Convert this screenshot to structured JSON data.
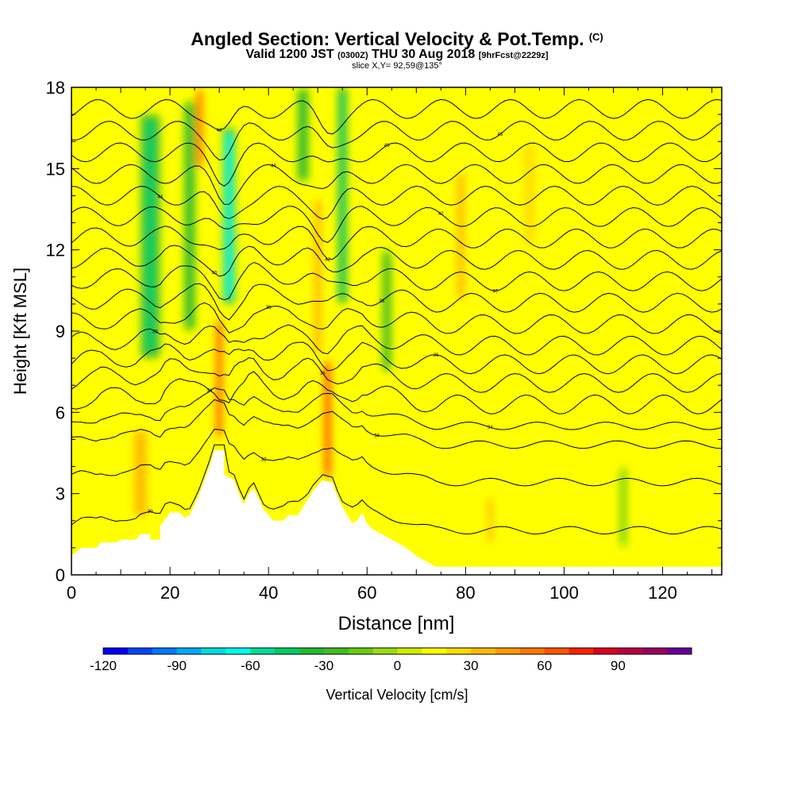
{
  "header": {
    "title": "Angled Section: Vertical Velocity & Pot.Temp.",
    "title_units": "(C)",
    "valid_prefix": "Valid 1200 JST",
    "valid_utc": "(0300Z)",
    "valid_date": "THU 30 Aug 2018",
    "forecast": "[9hrFcst@2229z]",
    "slice": "slice X,Y= 92,59@135°"
  },
  "chart_data": {
    "type": "heatmap",
    "xlabel": "Distance [nm]",
    "ylabel": "Height [Kft MSL]",
    "xlim": [
      0,
      132
    ],
    "ylim": [
      0,
      18
    ],
    "x_ticks": [
      0,
      20,
      40,
      60,
      80,
      100,
      120
    ],
    "y_ticks": [
      0,
      3,
      6,
      9,
      12,
      15,
      18
    ],
    "colorbar": {
      "label": "Vertical Velocity [cm/s]",
      "min": -120,
      "max": 110,
      "step": 10,
      "tick_values": [
        -120,
        -90,
        -60,
        -30,
        0,
        30,
        60,
        90
      ],
      "colors": [
        "#0000ff",
        "#0044ff",
        "#0077ff",
        "#00aaff",
        "#00dddd",
        "#00ffee",
        "#00dd99",
        "#00cc66",
        "#22bb33",
        "#44bb22",
        "#66cc11",
        "#99dd11",
        "#ccee00",
        "#ffff00",
        "#ffdd00",
        "#ffbb00",
        "#ff9900",
        "#ff7700",
        "#ff5500",
        "#ff2200",
        "#dd0022",
        "#bb0044",
        "#990066",
        "#660099"
      ]
    },
    "terrain_kft": [
      [
        0,
        0.7
      ],
      [
        2,
        1
      ],
      [
        5,
        1
      ],
      [
        6,
        1.2
      ],
      [
        9,
        1.2
      ],
      [
        10,
        1.3
      ],
      [
        13,
        1.3
      ],
      [
        14,
        1.5
      ],
      [
        16,
        1.5
      ],
      [
        16,
        1.3
      ],
      [
        18,
        1.3
      ],
      [
        18,
        1.8
      ],
      [
        20,
        2.3
      ],
      [
        22,
        2.3
      ],
      [
        23,
        2.1
      ],
      [
        24,
        2.2
      ],
      [
        25,
        2.6
      ],
      [
        26,
        3.0
      ],
      [
        27,
        3.5
      ],
      [
        28,
        4.0
      ],
      [
        29,
        4.6
      ],
      [
        31,
        4.6
      ],
      [
        31,
        3.7
      ],
      [
        33,
        3.5
      ],
      [
        34,
        3.0
      ],
      [
        35,
        2.6
      ],
      [
        35,
        2.6
      ],
      [
        36,
        3.0
      ],
      [
        37,
        3.2
      ],
      [
        38,
        2.8
      ],
      [
        39,
        2.4
      ],
      [
        40,
        2.2
      ],
      [
        41,
        2.0
      ],
      [
        43,
        2.0
      ],
      [
        44,
        2.2
      ],
      [
        46,
        2.2
      ],
      [
        47,
        2.5
      ],
      [
        48,
        2.8
      ],
      [
        49,
        3.1
      ],
      [
        50,
        3.3
      ],
      [
        51,
        3.5
      ],
      [
        53,
        3.4
      ],
      [
        54,
        2.9
      ],
      [
        55,
        2.5
      ],
      [
        56,
        2.2
      ],
      [
        57,
        1.9
      ],
      [
        58,
        2.0
      ],
      [
        59,
        2.3
      ],
      [
        60,
        1.9
      ],
      [
        61,
        1.7
      ],
      [
        62,
        1.6
      ],
      [
        63,
        1.5
      ],
      [
        64,
        1.4
      ],
      [
        66,
        1.2
      ],
      [
        68,
        1.0
      ],
      [
        70,
        0.7
      ],
      [
        72,
        0.5
      ],
      [
        74,
        0.3
      ],
      [
        132,
        0.3
      ]
    ],
    "updraft_bands": [
      {
        "x": 14,
        "width": 5,
        "z_bottom": 2.0,
        "z_top": 5.5,
        "w": 30
      },
      {
        "x": 30,
        "width": 1.6,
        "z_bottom": 5.0,
        "z_top": 9.5,
        "w": 70
      },
      {
        "x": 26,
        "width": 1.6,
        "z_bottom": 15.0,
        "z_top": 18.0,
        "w": 60
      },
      {
        "x": 52,
        "width": 1.8,
        "z_bottom": 3.5,
        "z_top": 8.0,
        "w": 75
      },
      {
        "x": 50,
        "width": 3,
        "z_bottom": 8.0,
        "z_top": 14.0,
        "w": 35
      },
      {
        "x": 79,
        "width": 3,
        "z_bottom": 10.0,
        "z_top": 15.0,
        "w": 30
      },
      {
        "x": 85,
        "width": 2,
        "z_bottom": 1.0,
        "z_top": 3.0,
        "w": 35
      },
      {
        "x": 93,
        "width": 4,
        "z_bottom": 12.0,
        "z_top": 16.0,
        "w": 25
      }
    ],
    "downdraft_bands": [
      {
        "x": 16,
        "width": 4,
        "z_bottom": 8.0,
        "z_top": 17.0,
        "w": -45
      },
      {
        "x": 24,
        "width": 2.5,
        "z_bottom": 9.0,
        "z_top": 17.5,
        "w": -40
      },
      {
        "x": 32,
        "width": 2.5,
        "z_bottom": 10.0,
        "z_top": 16.5,
        "w": -70
      },
      {
        "x": 47,
        "width": 2.5,
        "z_bottom": 14.5,
        "z_top": 18.0,
        "w": -40
      },
      {
        "x": 55,
        "width": 2.0,
        "z_bottom": 10.0,
        "z_top": 18.0,
        "w": -45
      },
      {
        "x": 64,
        "width": 2.0,
        "z_bottom": 7.5,
        "z_top": 12.0,
        "w": -30
      },
      {
        "x": 112,
        "width": 1.5,
        "z_bottom": 1.0,
        "z_top": 4.0,
        "w": -15
      }
    ],
    "theta_contours": [
      {
        "label": "30",
        "base_kft": 1.5
      },
      {
        "label": "32",
        "base_kft": 3.3
      },
      {
        "label": "34",
        "base_kft": 4.7
      },
      {
        "label": "34",
        "base_kft": 5.4
      },
      {
        "label": "34",
        "base_kft": 6.2
      },
      {
        "label": "36",
        "base_kft": 7.0
      },
      {
        "label": "36",
        "base_kft": 7.7
      },
      {
        "label": "36",
        "base_kft": 8.4
      },
      {
        "label": "38",
        "base_kft": 9.2
      },
      {
        "label": "38",
        "base_kft": 10.0
      },
      {
        "label": "40",
        "base_kft": 10.8
      },
      {
        "label": "40",
        "base_kft": 11.6
      },
      {
        "label": "42",
        "base_kft": 12.4
      },
      {
        "label": "42",
        "base_kft": 13.2
      },
      {
        "label": "44",
        "base_kft": 14.0
      },
      {
        "label": "44",
        "base_kft": 14.8
      },
      {
        "label": "46",
        "base_kft": 15.6
      },
      {
        "label": "46",
        "base_kft": 16.4
      },
      {
        "label": "48",
        "base_kft": 17.2
      }
    ]
  }
}
